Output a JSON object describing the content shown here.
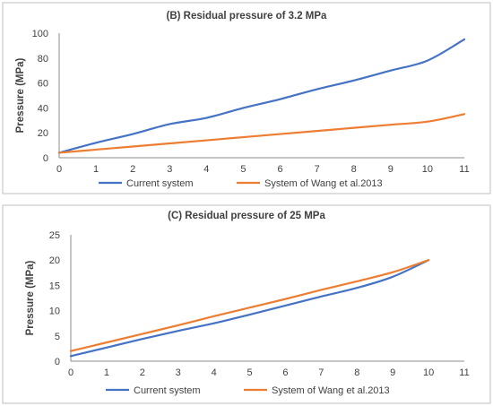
{
  "chart_data": [
    {
      "type": "line",
      "title": "(B) Residual pressure of 3.2 MPa",
      "xlabel": "",
      "ylabel": "Pressure (MPa)",
      "x_ticks": [
        "0",
        "1",
        "2",
        "3",
        "4",
        "5",
        "6",
        "7",
        "8",
        "9",
        "10",
        "11"
      ],
      "y_ticks": [
        "0",
        "20",
        "40",
        "60",
        "80",
        "100"
      ],
      "xlim": [
        0,
        11
      ],
      "ylim": [
        0,
        100
      ],
      "grid": false,
      "legend_position": "bottom",
      "series": [
        {
          "name": "Current system",
          "color": "#4472c4",
          "x": [
            0,
            1,
            2,
            3,
            4,
            5,
            6,
            7,
            8,
            9,
            10,
            11
          ],
          "y": [
            4,
            12,
            19,
            27,
            32,
            40,
            47,
            55,
            62,
            70,
            78,
            95
          ]
        },
        {
          "name": "System of Wang et al.2013",
          "color": "#ed7d31",
          "x": [
            0,
            1,
            2,
            3,
            4,
            5,
            6,
            7,
            8,
            9,
            10,
            11
          ],
          "y": [
            4,
            6.5,
            9,
            11.5,
            14,
            16.5,
            19,
            21.5,
            24,
            26.5,
            29,
            35
          ]
        }
      ]
    },
    {
      "type": "line",
      "title": "(C) Residual pressure of 25 MPa",
      "xlabel": "",
      "ylabel": "Pressure (MPa)",
      "x_ticks": [
        "0",
        "1",
        "2",
        "3",
        "4",
        "5",
        "6",
        "7",
        "8",
        "9",
        "10",
        "11"
      ],
      "y_ticks": [
        "0",
        "5",
        "10",
        "15",
        "20",
        "25"
      ],
      "xlim": [
        0,
        11
      ],
      "ylim": [
        0,
        25
      ],
      "grid": false,
      "legend_position": "bottom",
      "series": [
        {
          "name": "Current system",
          "color": "#4472c4",
          "x": [
            0,
            1,
            2,
            3,
            4,
            5,
            6,
            7,
            8,
            9,
            10
          ],
          "y": [
            1,
            2.7,
            4.4,
            6,
            7.5,
            9.2,
            11,
            12.8,
            14.5,
            16.7,
            20
          ]
        },
        {
          "name": "System of Wang et al.2013",
          "color": "#ed7d31",
          "x": [
            0,
            1,
            2,
            3,
            4,
            5,
            6,
            7,
            8,
            9,
            10
          ],
          "y": [
            2,
            3.7,
            5.4,
            7.1,
            8.9,
            10.6,
            12.3,
            14.1,
            15.8,
            17.6,
            20
          ]
        }
      ]
    }
  ]
}
